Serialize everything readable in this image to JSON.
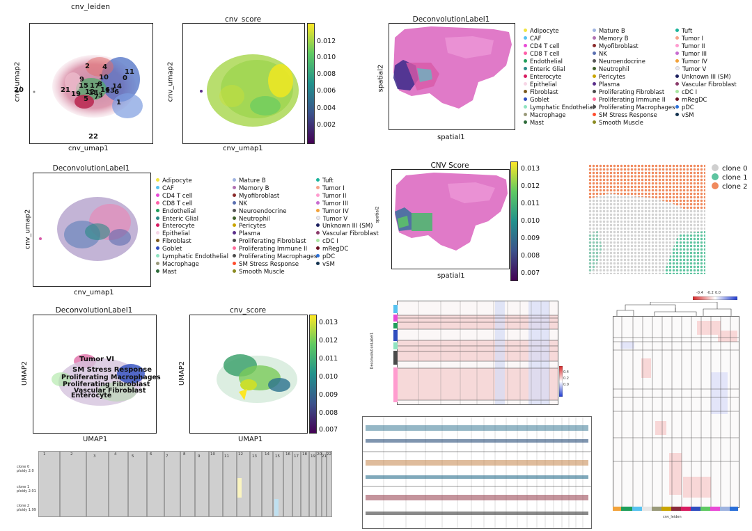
{
  "panel_cnv_leiden": {
    "title": "cnv_leiden",
    "xlabel": "cnv_umap1",
    "ylabel": "cnv_umap2",
    "cluster_labels": [
      "20",
      "21",
      "22",
      "2",
      "4",
      "11",
      "0",
      "10",
      "8",
      "9",
      "15",
      "17",
      "16",
      "14",
      "6",
      "19",
      "18",
      "3",
      "5",
      "1",
      "12",
      "13",
      "7"
    ]
  },
  "panel_cnv_score_top": {
    "title": "cnv_score",
    "xlabel": "cnv_umap1",
    "ylabel": "cnv_umap2",
    "colorbar_ticks": [
      "0.012",
      "0.010",
      "0.008",
      "0.006",
      "0.004",
      "0.002"
    ]
  },
  "panel_spatial_deconv": {
    "title": "DeconvolutionLabel1",
    "xlabel": "spatial1",
    "ylabel": "spatial2"
  },
  "legend": {
    "col1": [
      {
        "label": "Adipocyte",
        "color": "#f0e442"
      },
      {
        "label": "CAF",
        "color": "#56c2f0"
      },
      {
        "label": "CD4 T cell",
        "color": "#e84ad6"
      },
      {
        "label": "CD8 T cell",
        "color": "#ff5fa8"
      },
      {
        "label": "Endothelial",
        "color": "#1f9e5a"
      },
      {
        "label": "Enteric Glial",
        "color": "#2a8a86"
      },
      {
        "label": "Enterocyte",
        "color": "#d81b60"
      },
      {
        "label": "Epithelial",
        "color": "#f7d6e6"
      },
      {
        "label": "Fibroblast",
        "color": "#7a5a1e"
      },
      {
        "label": "Goblet",
        "color": "#2f4dbf"
      },
      {
        "label": "Lymphatic Endothelial",
        "color": "#8fe3c0"
      },
      {
        "label": "Macrophage",
        "color": "#9a9a7a"
      },
      {
        "label": "Mast",
        "color": "#2e6b3a"
      }
    ],
    "col2": [
      {
        "label": "Mature B",
        "color": "#9fb3e0"
      },
      {
        "label": "Memory B",
        "color": "#b06fb0"
      },
      {
        "label": "Myofibroblast",
        "color": "#8b2a2a"
      },
      {
        "label": "NK",
        "color": "#5a6fb0"
      },
      {
        "label": "Neuroendocrine",
        "color": "#555555"
      },
      {
        "label": "Neutrophil",
        "color": "#3f5f2a"
      },
      {
        "label": "Pericytes",
        "color": "#c9a400"
      },
      {
        "label": "Plasma",
        "color": "#5b2e8a"
      },
      {
        "label": "Proliferating Fibroblast",
        "color": "#4a4a4a"
      },
      {
        "label": "Proliferating Immune II",
        "color": "#ff6b9a"
      },
      {
        "label": "Proliferating Macrophages",
        "color": "#4c4c4c"
      },
      {
        "label": "SM Stress Response",
        "color": "#ff4d2e"
      },
      {
        "label": "Smooth Muscle",
        "color": "#8a8a20"
      }
    ],
    "col3": [
      {
        "label": "Tuft",
        "color": "#1ab39a"
      },
      {
        "label": "Tumor I",
        "color": "#f7a28a"
      },
      {
        "label": "Tumor II",
        "color": "#ff9ccf"
      },
      {
        "label": "Tumor III",
        "color": "#c86bd0"
      },
      {
        "label": "Tumor IV",
        "color": "#f2a23a"
      },
      {
        "label": "Tumor V",
        "color": "#f0f0f8"
      },
      {
        "label": "Unknown III (SM)",
        "color": "#1b1f5e"
      },
      {
        "label": "Vascular Fibroblast",
        "color": "#8a3a6a"
      },
      {
        "label": "cDC I",
        "color": "#a8e6a0"
      },
      {
        "label": "mRegDC",
        "color": "#6a1020"
      },
      {
        "label": "pDC",
        "color": "#2a6fd8"
      },
      {
        "label": "vSM",
        "color": "#12324e"
      }
    ]
  },
  "panel_umap_deconv": {
    "title": "DeconvolutionLabel1",
    "xlabel": "cnv_umap1",
    "ylabel": "cnv_umap2"
  },
  "panel_spatial_cnv": {
    "title": "CNV Score",
    "xlabel": "spatial1",
    "ylabel": "spatial2",
    "colorbar_ticks": [
      "0.013",
      "0.012",
      "0.011",
      "0.010",
      "0.009",
      "0.008",
      "0.007"
    ]
  },
  "panel_clones_legend": {
    "items": [
      {
        "label": "clone 0",
        "color": "#cfcfcf"
      },
      {
        "label": "clone 1",
        "color": "#5ec4a0"
      },
      {
        "label": "clone 2",
        "color": "#f08a5d"
      }
    ]
  },
  "panel_umap_labels": {
    "title": "DeconvolutionLabel1",
    "xlabel": "UMAP1",
    "ylabel": "UMAP2",
    "overlay_labels": [
      "Tumor VI",
      "SM Stress Response",
      "Proliferating Macrophages",
      "Proliferating Fibroblast",
      "Vascular Fibroblast",
      "Enterocyte"
    ]
  },
  "panel_umap_cnv_score": {
    "title": "cnv_score",
    "xlabel": "UMAP1",
    "ylabel": "UMAP2",
    "colorbar_ticks": [
      "0.013",
      "0.012",
      "0.011",
      "0.010",
      "0.009",
      "0.008",
      "0.007"
    ]
  },
  "panel_clone_chrom": {
    "chromosomes": [
      "1",
      "2",
      "3",
      "4",
      "5",
      "6",
      "7",
      "8",
      "9",
      "10",
      "11",
      "12",
      "13",
      "14",
      "15",
      "16",
      "17",
      "18",
      "19",
      "20",
      "21",
      "22"
    ],
    "rows": [
      {
        "name": "clone 0",
        "ploidy": "ploidy 2.0"
      },
      {
        "name": "clone 1",
        "ploidy": "ploidy 2.01"
      },
      {
        "name": "clone 2",
        "ploidy": "ploidy 1.99"
      }
    ]
  },
  "panel_heatmap_mid": {
    "ylabel": "DeconvolutionLabel1",
    "colorbar_ticks": [
      "0.4",
      "0.2",
      "0.0"
    ]
  },
  "panel_heatmap_right": {
    "colorbar_ticks": [
      "-0.4",
      "-0.2",
      "0.0"
    ],
    "xlabel": "cnv_leiden"
  }
}
